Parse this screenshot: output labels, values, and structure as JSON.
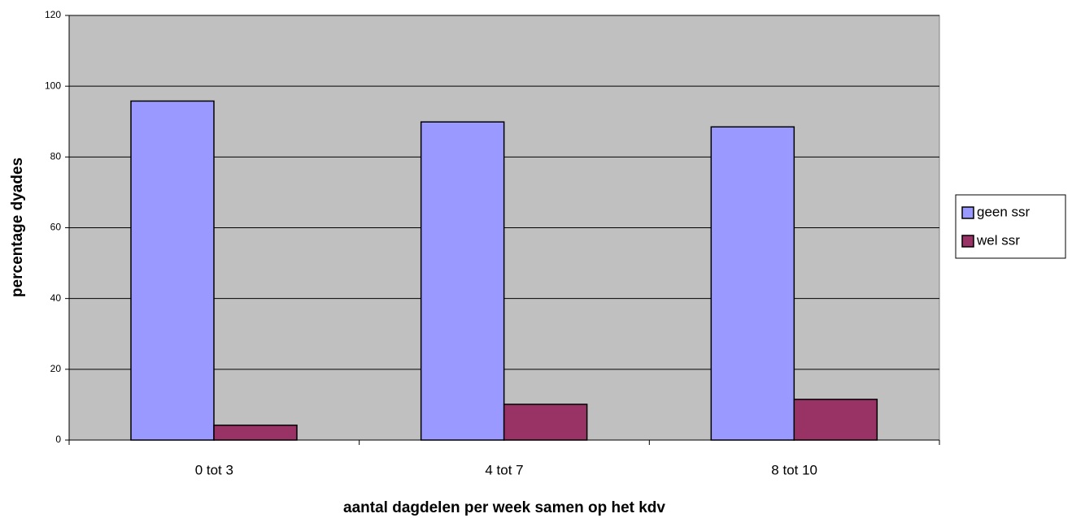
{
  "chart_data": {
    "type": "bar",
    "categories": [
      "0 tot 3",
      "4 tot 7",
      "8 tot 10"
    ],
    "series": [
      {
        "name": "geen ssr",
        "color": "#9999ff",
        "values": [
          95.8,
          89.9,
          88.5
        ]
      },
      {
        "name": "wel ssr",
        "color": "#993366",
        "values": [
          4.2,
          10.1,
          11.5
        ]
      }
    ],
    "ylim": [
      0,
      120
    ],
    "yticks": [
      0,
      20,
      40,
      60,
      80,
      100,
      120
    ],
    "grid": true,
    "ylabel": "percentage dyades",
    "xlabel": "aantal dagdelen per week samen op het kdv",
    "legend": "right"
  }
}
